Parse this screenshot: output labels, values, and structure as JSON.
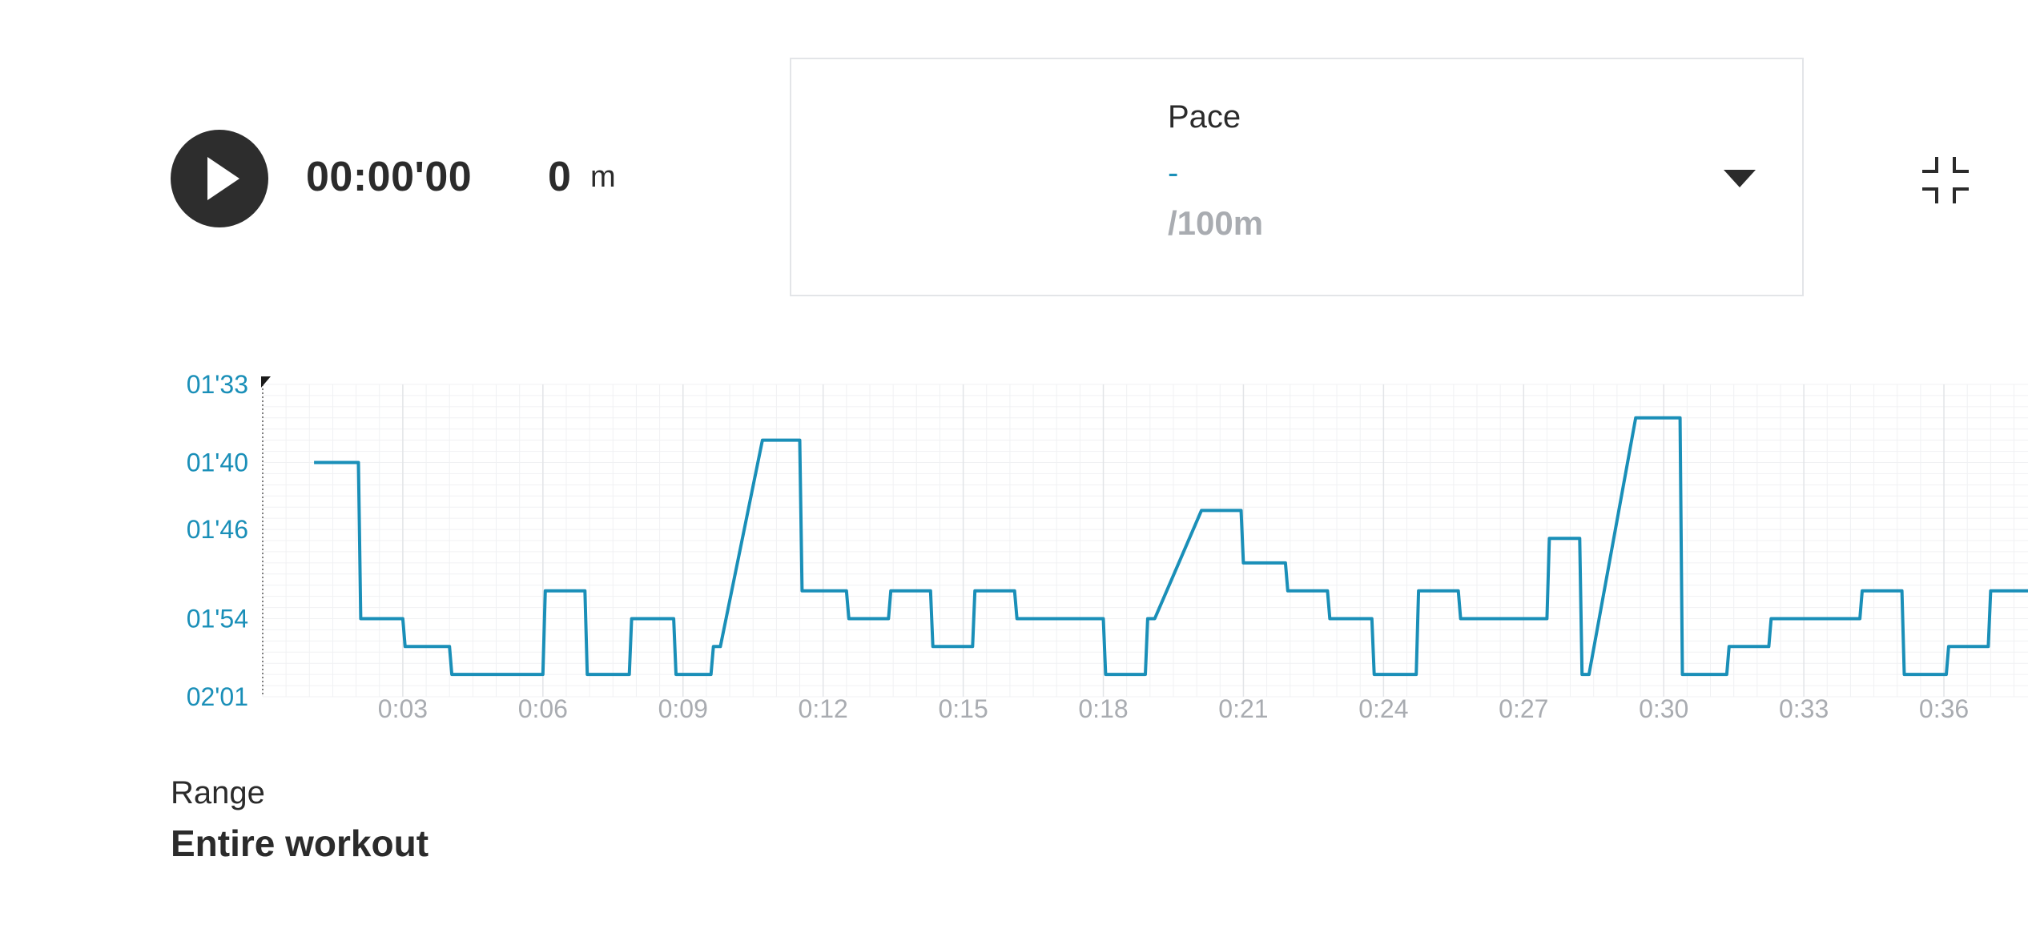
{
  "playback": {
    "elapsed_time": "00:00'00",
    "distance_value": "0",
    "distance_unit": "m"
  },
  "metric_selector": {
    "label": "Pace",
    "value": "-",
    "unit": "/100m"
  },
  "range": {
    "label": "Range",
    "value": "Entire workout"
  },
  "colors": {
    "accent": "#1a8fb8",
    "text": "#2b2b2b",
    "muted": "#a9acb1",
    "grid": "#eeeff1"
  },
  "icons": {
    "play": "play-icon",
    "dropdown": "chevron-down-icon",
    "collapse": "collapse-icon"
  },
  "chart_data": {
    "type": "line",
    "xlabel": "",
    "ylabel": "",
    "x_unit": "min",
    "xlim": [
      0,
      37.8
    ],
    "ylim_seconds": [
      93,
      121
    ],
    "y_inverted": true,
    "grid": true,
    "x_ticks": [
      "0:03",
      "0:06",
      "0:09",
      "0:12",
      "0:15",
      "0:18",
      "0:21",
      "0:24",
      "0:27",
      "0:30",
      "0:33",
      "0:36"
    ],
    "x_tick_values": [
      3,
      6,
      9,
      12,
      15,
      18,
      21,
      24,
      27,
      30,
      33,
      36
    ],
    "y_ticks": [
      "01'33",
      "01'40",
      "01'46",
      "01'54",
      "02'01"
    ],
    "y_tick_values": [
      93,
      100,
      106,
      114,
      121
    ],
    "series": [
      {
        "x": [
          1.1,
          2.05,
          2.1,
          3.0,
          3.05,
          4.0,
          4.05,
          6.0,
          6.05,
          6.9,
          6.95,
          7.85,
          7.9,
          8.8,
          8.85,
          9.6,
          9.65,
          9.8,
          10.7,
          11.5,
          11.55,
          12.5,
          12.55,
          13.4,
          13.45,
          14.3,
          14.35,
          15.2,
          15.25,
          16.1,
          16.15,
          18.0,
          18.05,
          18.9,
          18.95,
          19.1,
          20.1,
          20.95,
          21.0,
          21.9,
          21.95,
          22.8,
          22.85,
          23.75,
          23.8,
          24.7,
          24.75,
          25.6,
          25.65,
          27.5,
          27.55,
          28.2,
          28.25,
          28.4,
          29.4,
          30.35,
          30.4,
          31.35,
          31.4,
          32.25,
          32.3,
          34.2,
          34.25,
          35.1,
          35.15,
          36.05,
          36.1,
          36.95,
          37.0,
          37.8
        ],
        "y": [
          100,
          100,
          114,
          114,
          116.5,
          116.5,
          119,
          119,
          111.5,
          111.5,
          119,
          119,
          114,
          114,
          119,
          119,
          116.5,
          116.5,
          98,
          98,
          111.5,
          111.5,
          114,
          114,
          111.5,
          111.5,
          116.5,
          116.5,
          111.5,
          111.5,
          114,
          114,
          119,
          119,
          114,
          114,
          104.3,
          104.3,
          109,
          109,
          111.5,
          111.5,
          114,
          114,
          119,
          119,
          111.5,
          111.5,
          114,
          114,
          106.8,
          106.8,
          119,
          119,
          96,
          96,
          119,
          119,
          116.5,
          116.5,
          114,
          114,
          111.5,
          111.5,
          119,
          119,
          116.5,
          116.5,
          111.5,
          111.5
        ]
      }
    ]
  }
}
